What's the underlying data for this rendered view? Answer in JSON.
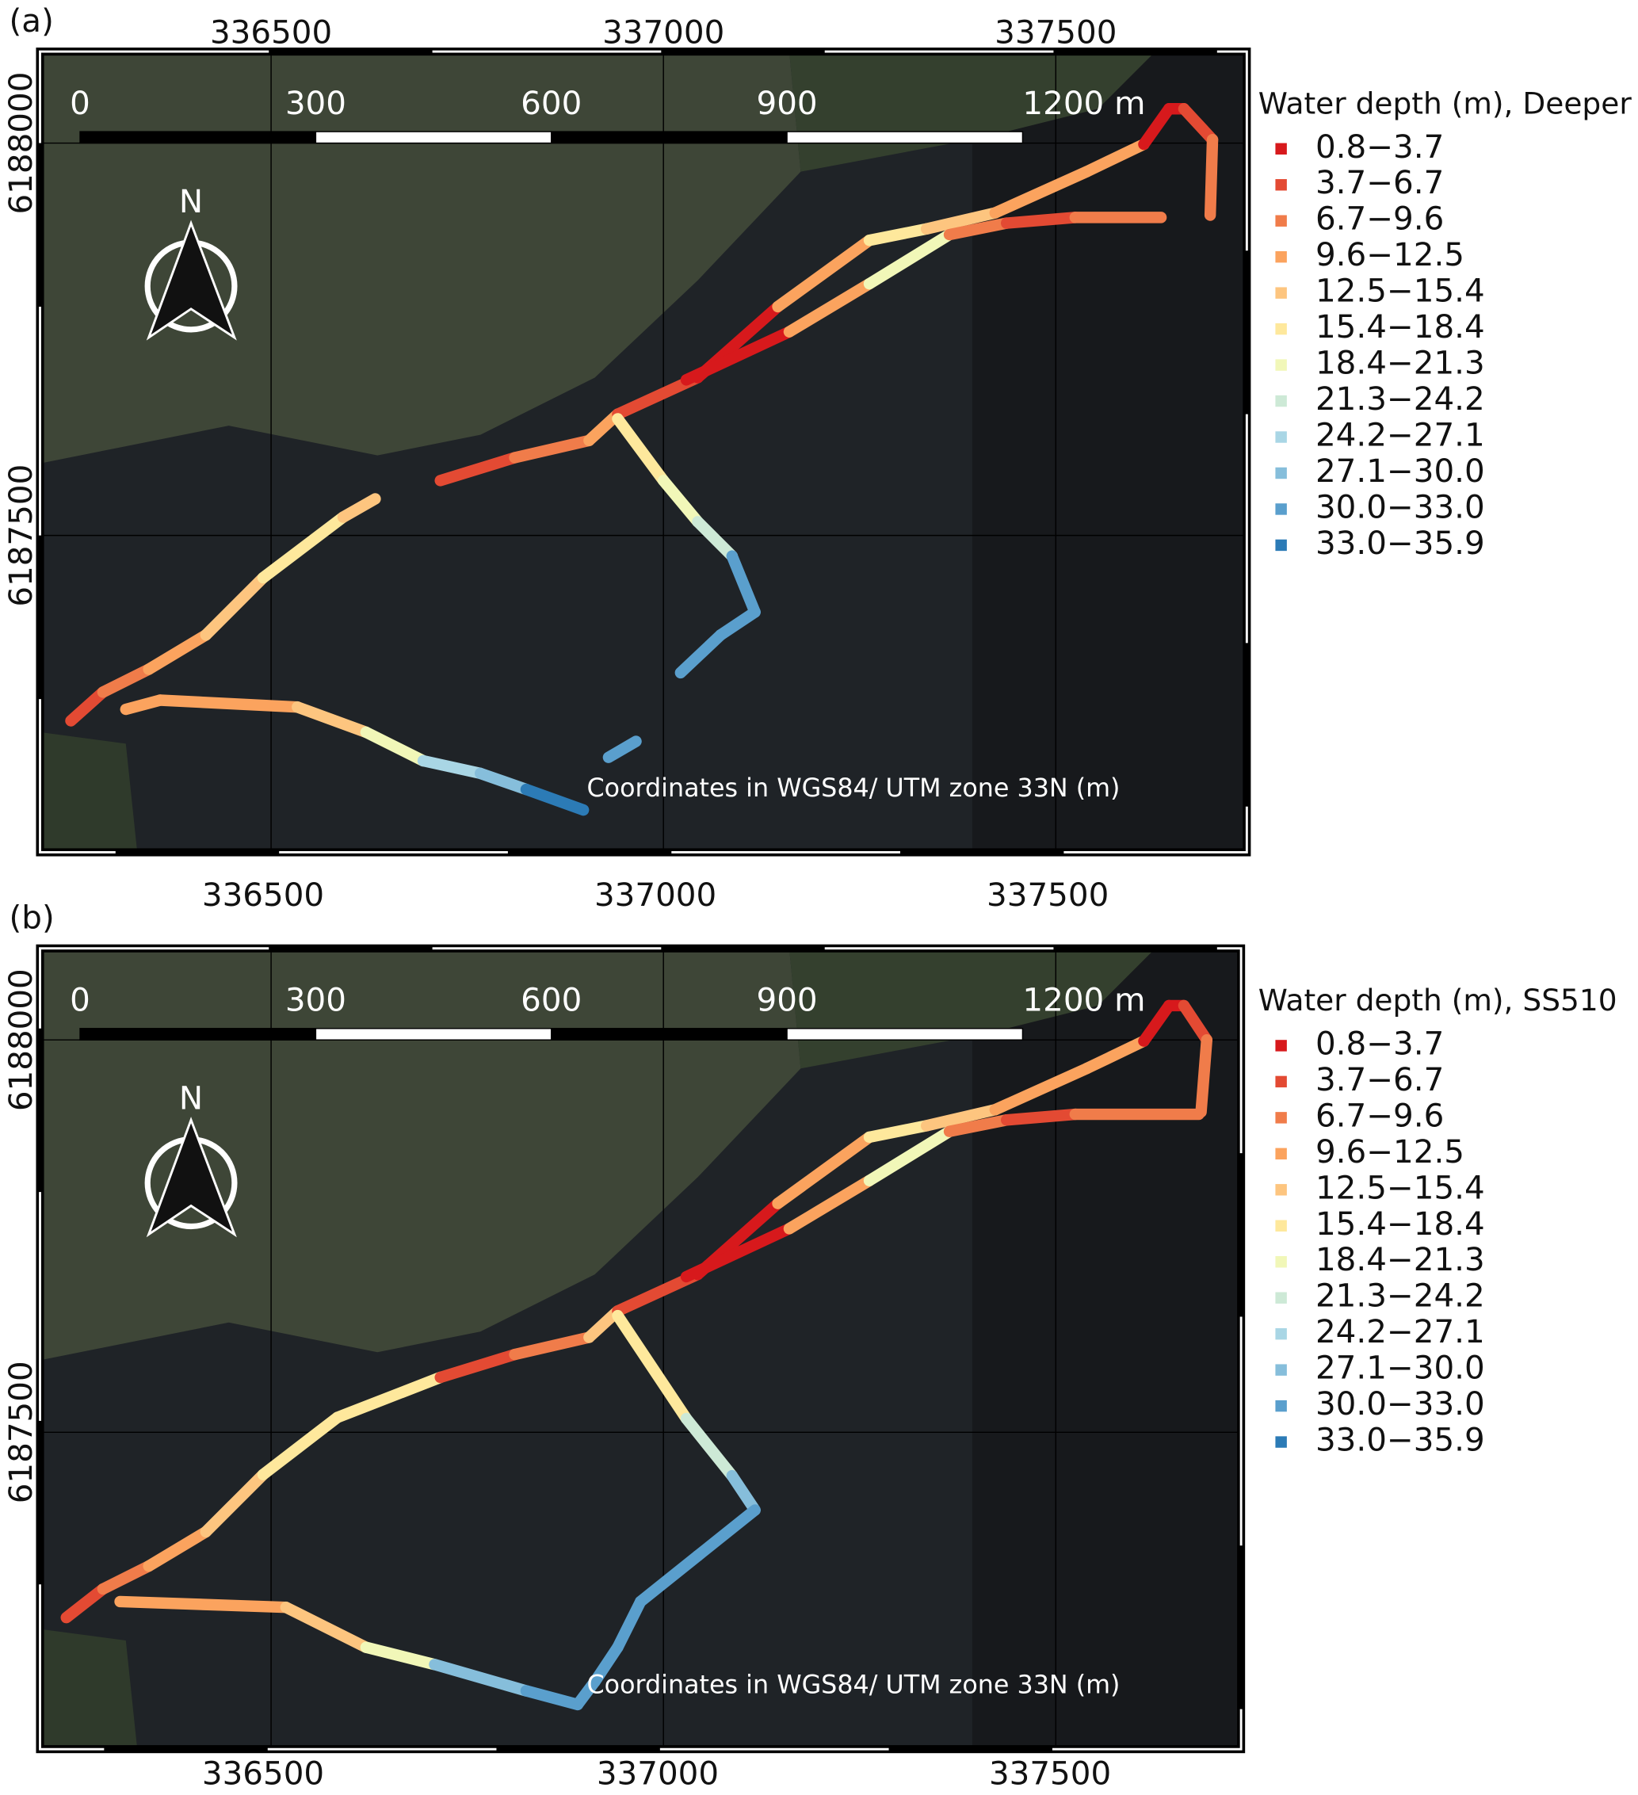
{
  "panels": [
    {
      "label": "(a)",
      "x_labels_top": [
        "336500",
        "337000",
        "337500"
      ],
      "y_labels": [
        "6188000",
        "6187500"
      ],
      "scale_labels": [
        "0",
        "300",
        "600",
        "900",
        "1200 m"
      ],
      "north_label": "N",
      "legend_title": "Water depth (m), Deeper",
      "note": "Coordinates  in WGS84/ UTM zone 33N (m)"
    },
    {
      "label": "(b)",
      "x_labels_top": [
        "336500",
        "337000",
        "337500"
      ],
      "x_labels_bottom": [
        "336500",
        "337000",
        "337500"
      ],
      "y_labels": [
        "6188000",
        "6187500"
      ],
      "scale_labels": [
        "0",
        "300",
        "600",
        "900",
        "1200 m"
      ],
      "north_label": "N",
      "legend_title": "Water depth (m), SS510",
      "note": "Coordinates  in WGS84/ UTM zone 33N (m)"
    }
  ],
  "legend": [
    {
      "label": "0.8−3.7",
      "color": "#d7191c"
    },
    {
      "label": "3.7−6.7",
      "color": "#e34a33"
    },
    {
      "label": "6.7−9.6",
      "color": "#f07c4a"
    },
    {
      "label": "9.6−12.5",
      "color": "#fba35e"
    },
    {
      "label": "12.5−15.4",
      "color": "#fdc57f"
    },
    {
      "label": "15.4−18.4",
      "color": "#fee89c"
    },
    {
      "label": "18.4−21.3",
      "color": "#f1f7b8"
    },
    {
      "label": "21.3−24.2",
      "color": "#cde9d6"
    },
    {
      "label": "24.2−27.1",
      "color": "#a9d6e5"
    },
    {
      "label": "27.1−30.0",
      "color": "#86bedb"
    },
    {
      "label": "30.0−33.0",
      "color": "#5a9fcd"
    },
    {
      "label": "33.0−35.9",
      "color": "#2c7bb6"
    }
  ]
}
